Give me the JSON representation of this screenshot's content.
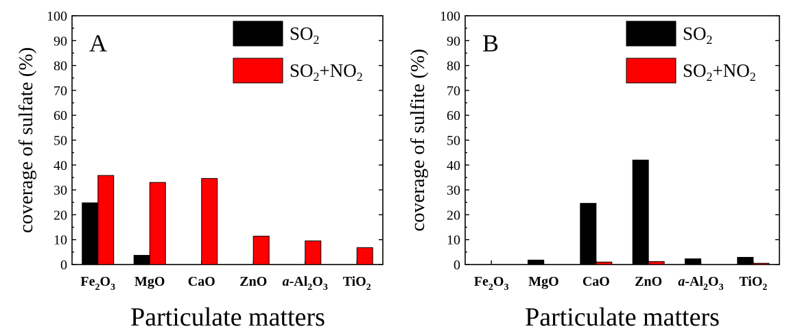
{
  "chart_data": [
    {
      "type": "bar",
      "panel_label": "A",
      "categories": [
        {
          "base": "Fe",
          "parts": [
            [
              "Fe",
              ""
            ],
            [
              "2",
              "sub"
            ],
            [
              "O",
              ""
            ],
            [
              "3",
              "sub"
            ]
          ]
        },
        {
          "base": "MgO",
          "parts": [
            [
              "MgO",
              ""
            ]
          ]
        },
        {
          "base": "CaO",
          "parts": [
            [
              "CaO",
              ""
            ]
          ]
        },
        {
          "base": "ZnO",
          "parts": [
            [
              "ZnO",
              ""
            ]
          ]
        },
        {
          "base": "a-Al",
          "parts": [
            [
              "a",
              "italic"
            ],
            [
              "-Al",
              ""
            ],
            [
              "2",
              "sub"
            ],
            [
              "O",
              ""
            ],
            [
              "3",
              "sub"
            ]
          ]
        },
        {
          "base": "TiO",
          "parts": [
            [
              "TiO",
              ""
            ],
            [
              "2",
              "sub"
            ]
          ]
        }
      ],
      "series": [
        {
          "name": "SO2",
          "color": "#000000",
          "values": [
            24.8,
            3.7,
            0,
            0,
            0,
            0
          ]
        },
        {
          "name": "SO2+NO2",
          "color": "#ff0000",
          "values": [
            35.8,
            33.0,
            34.6,
            11.4,
            9.5,
            6.8
          ]
        }
      ],
      "ylabel": "coverage of sulfate (%)",
      "xlabel": "Particulate matters",
      "ylim": [
        0,
        100
      ],
      "yticks": [
        0,
        10,
        20,
        30,
        40,
        50,
        60,
        70,
        80,
        90,
        100
      ],
      "legend": "top-right"
    },
    {
      "type": "bar",
      "panel_label": "B",
      "categories": [
        {
          "base": "Fe",
          "parts": [
            [
              "Fe",
              ""
            ],
            [
              "2",
              "sub"
            ],
            [
              "O",
              ""
            ],
            [
              "3",
              "sub"
            ]
          ]
        },
        {
          "base": "MgO",
          "parts": [
            [
              "MgO",
              ""
            ]
          ]
        },
        {
          "base": "CaO",
          "parts": [
            [
              "CaO",
              ""
            ]
          ]
        },
        {
          "base": "ZnO",
          "parts": [
            [
              "ZnO",
              ""
            ]
          ]
        },
        {
          "base": "a-Al",
          "parts": [
            [
              "a",
              "italic"
            ],
            [
              "-Al",
              ""
            ],
            [
              "2",
              "sub"
            ],
            [
              "O",
              ""
            ],
            [
              "3",
              "sub"
            ]
          ]
        },
        {
          "base": "TiO",
          "parts": [
            [
              "TiO",
              ""
            ],
            [
              "2",
              "sub"
            ]
          ]
        }
      ],
      "series": [
        {
          "name": "SO2",
          "color": "#000000",
          "values": [
            0,
            1.8,
            24.6,
            42.0,
            2.3,
            2.9
          ]
        },
        {
          "name": "SO2+NO2",
          "color": "#ff0000",
          "values": [
            0,
            0,
            1.0,
            1.2,
            0,
            0.5
          ]
        }
      ],
      "ylabel": "coverage of sulfite (%)",
      "xlabel": "Particulate matters",
      "ylim": [
        0,
        100
      ],
      "yticks": [
        0,
        10,
        20,
        30,
        40,
        50,
        60,
        70,
        80,
        90,
        100
      ],
      "legend": "top-right"
    }
  ],
  "legend_labels": {
    "so2": {
      "parts": [
        [
          "SO",
          ""
        ],
        [
          "2",
          "sub"
        ]
      ]
    },
    "so2_no2": {
      "parts": [
        [
          "SO",
          ""
        ],
        [
          "2",
          "sub"
        ],
        [
          "+NO",
          ""
        ],
        [
          "2",
          "sub"
        ]
      ]
    }
  }
}
